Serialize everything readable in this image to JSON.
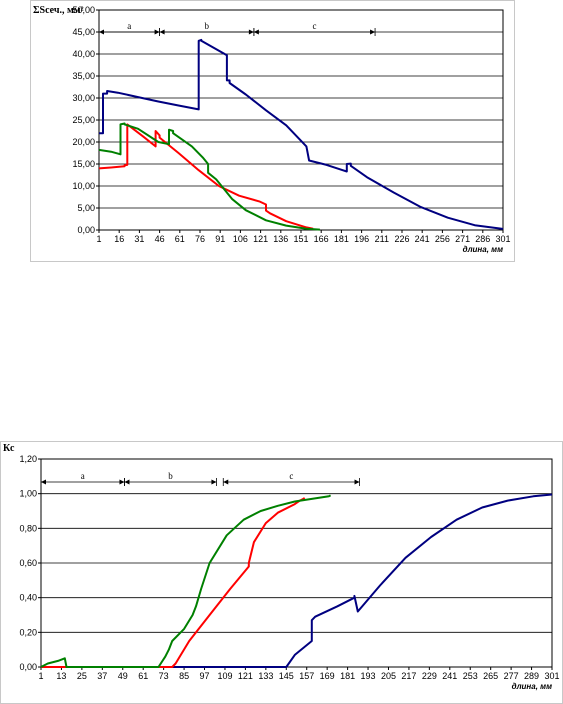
{
  "chart_data": [
    {
      "type": "line",
      "ylabel": "ΣSсеч., мм²",
      "xlabel": "длина, мм",
      "ylim": [
        0,
        50
      ],
      "y_ticks": [
        "0,00",
        "5,00",
        "10,00",
        "15,00",
        "20,00",
        "25,00",
        "30,00",
        "35,00",
        "40,00",
        "45,00",
        "50,00"
      ],
      "y_tick_values": [
        0,
        5,
        10,
        15,
        20,
        25,
        30,
        35,
        40,
        45,
        50
      ],
      "x_ticks": [
        "1",
        "16",
        "31",
        "46",
        "61",
        "76",
        "91",
        "106",
        "121",
        "136",
        "151",
        "166",
        "181",
        "196",
        "211",
        "226",
        "241",
        "256",
        "271",
        "286",
        "301"
      ],
      "xlim": [
        1,
        301
      ],
      "grid": "horizontal",
      "zones": [
        {
          "label": "a",
          "from": 1,
          "to": 46
        },
        {
          "label": "b",
          "from": 46,
          "to": 116
        },
        {
          "label": "c",
          "from": 116,
          "to": 206
        }
      ],
      "series": [
        {
          "color": "#000080",
          "x": [
            1,
            4,
            4,
            7,
            7,
            15,
            30,
            45,
            60,
            75,
            75,
            77,
            77,
            96,
            96,
            98,
            98,
            110,
            125,
            140,
            155,
            155,
            157,
            157,
            170,
            182,
            185,
            185,
            188,
            188,
            200,
            220,
            240,
            260,
            280,
            300,
            301
          ],
          "y": [
            22,
            22,
            31,
            31,
            31.6,
            31.2,
            30.2,
            29.2,
            28.3,
            27.4,
            43,
            43.2,
            43,
            39.7,
            34,
            34,
            33.4,
            30.8,
            27.2,
            23.8,
            19,
            19,
            15.8,
            15.8,
            14.8,
            13.6,
            13.3,
            15,
            15.1,
            14.6,
            12,
            8.5,
            5.2,
            2.8,
            1.1,
            0.3,
            0.2
          ]
        },
        {
          "color": "#ff0000",
          "x": [
            1,
            10,
            20,
            20,
            22,
            22,
            34,
            43,
            43,
            46,
            46,
            60,
            75,
            90,
            105,
            120,
            125,
            125,
            128,
            140,
            155,
            160
          ],
          "y": [
            14,
            14.2,
            14.5,
            14.7,
            14.8,
            24,
            21.2,
            19,
            22.5,
            21.5,
            21,
            17.5,
            13.6,
            10,
            7.8,
            6.5,
            5.8,
            4.4,
            3.8,
            2,
            0.6,
            0.3
          ]
        },
        {
          "color": "#008000",
          "x": [
            1,
            10,
            17,
            17,
            20,
            20,
            30,
            45,
            53,
            53,
            56,
            56,
            70,
            78,
            82,
            82,
            88,
            100,
            110,
            125,
            140,
            155,
            165
          ],
          "y": [
            18.2,
            17.8,
            17.2,
            24,
            24.2,
            24,
            23,
            20,
            19.5,
            22.8,
            22.5,
            22,
            19,
            16.5,
            15,
            13,
            11.5,
            7,
            4.5,
            2.2,
            1,
            0.3,
            0.1
          ]
        }
      ]
    },
    {
      "type": "line",
      "ylabel": "Кс",
      "xlabel": "длина, мм",
      "ylim": [
        0,
        1.2
      ],
      "y_ticks": [
        "0,00",
        "0,20",
        "0,40",
        "0,60",
        "0,80",
        "1,00",
        "1,20"
      ],
      "y_tick_values": [
        0,
        0.2,
        0.4,
        0.6,
        0.8,
        1,
        1.2
      ],
      "x_ticks": [
        "1",
        "13",
        "25",
        "37",
        "49",
        "61",
        "73",
        "85",
        "97",
        "109",
        "121",
        "133",
        "145",
        "157",
        "169",
        "181",
        "193",
        "205",
        "217",
        "229",
        "241",
        "253",
        "265",
        "277",
        "289",
        "301"
      ],
      "xlim": [
        1,
        301
      ],
      "grid": "horizontal",
      "zones": [
        {
          "label": "a",
          "from": 1,
          "to": 50
        },
        {
          "label": "b",
          "from": 50,
          "to": 104
        },
        {
          "label": "c",
          "from": 108,
          "to": 188
        }
      ],
      "series": [
        {
          "color": "#000080",
          "x": [
            1,
            50,
            100,
            145,
            150,
            160,
            160,
            162,
            175,
            185,
            185,
            187,
            200,
            215,
            230,
            245,
            260,
            275,
            290,
            301
          ],
          "y": [
            0,
            0,
            0,
            0,
            0.07,
            0.15,
            0.27,
            0.29,
            0.35,
            0.4,
            0.41,
            0.32,
            0.47,
            0.63,
            0.75,
            0.85,
            0.92,
            0.96,
            0.985,
            0.995
          ]
        },
        {
          "color": "#ff0000",
          "x": [
            1,
            50,
            78,
            80,
            88,
            100,
            112,
            123,
            123,
            126,
            133,
            140,
            150,
            153,
            155,
            155.8
          ],
          "y": [
            0,
            0,
            0,
            0.02,
            0.15,
            0.3,
            0.45,
            0.58,
            0.6,
            0.72,
            0.83,
            0.89,
            0.94,
            0.96,
            0.97,
            0.975
          ]
        },
        {
          "color": "#008000",
          "x": [
            1,
            5,
            11,
            15,
            16,
            20,
            50,
            70,
            74,
            76,
            78,
            85,
            90,
            92,
            95,
            100,
            110,
            120,
            130,
            140,
            150,
            160,
            170,
            171
          ],
          "y": [
            0,
            0.02,
            0.035,
            0.05,
            0,
            0,
            0,
            0,
            0.06,
            0.1,
            0.15,
            0.22,
            0.3,
            0.35,
            0.45,
            0.6,
            0.76,
            0.85,
            0.9,
            0.93,
            0.955,
            0.97,
            0.985,
            0.99
          ]
        }
      ]
    }
  ]
}
